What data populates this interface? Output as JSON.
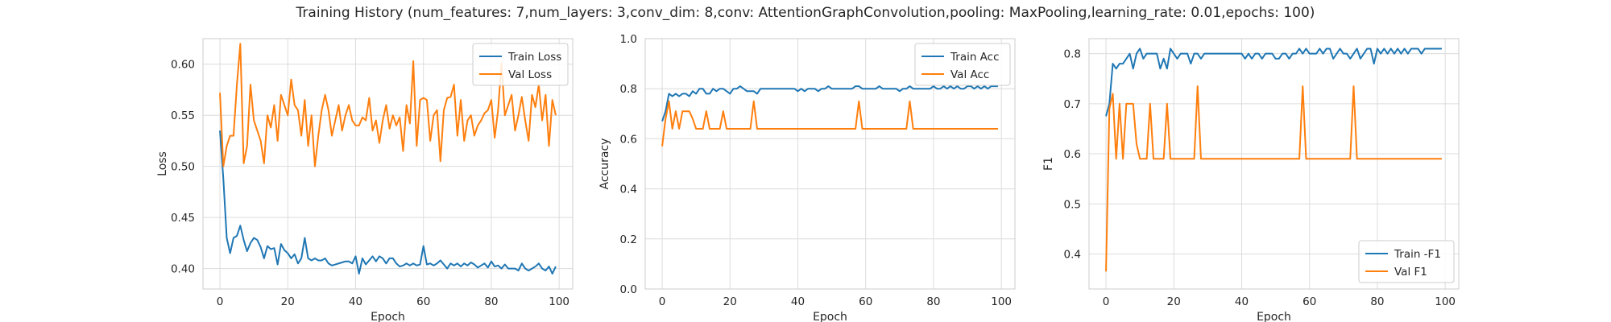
{
  "figure": {
    "suptitle": "Training History (num_features: 7,num_layers: 3,conv_dim: 8,conv: AttentionGraphConvolution,pooling: MaxPooling,learning_rate: 0.01,epochs: 100)"
  },
  "colors": {
    "series1": "#1f77b4",
    "series2": "#ff7f0e",
    "grid": "#dcdcdc",
    "frame": "#cccccc"
  },
  "chart_data": [
    {
      "type": "line",
      "xlabel": "Epoch",
      "ylabel": "Loss",
      "xlim": [
        -5,
        104
      ],
      "ylim": [
        0.38,
        0.625
      ],
      "xticks": [
        0,
        20,
        40,
        60,
        80,
        100
      ],
      "yticks": [
        0.4,
        0.45,
        0.5,
        0.55,
        0.6
      ],
      "ytick_labels": [
        "0.40",
        "0.45",
        "0.50",
        "0.55",
        "0.60"
      ],
      "grid": true,
      "legend": "top-right",
      "series": [
        {
          "name": "Train Loss",
          "values": [
            0.535,
            0.488,
            0.43,
            0.415,
            0.43,
            0.432,
            0.442,
            0.428,
            0.417,
            0.425,
            0.43,
            0.428,
            0.421,
            0.41,
            0.422,
            0.419,
            0.42,
            0.404,
            0.424,
            0.418,
            0.415,
            0.41,
            0.414,
            0.405,
            0.41,
            0.43,
            0.41,
            0.408,
            0.41,
            0.408,
            0.408,
            0.41,
            0.405,
            0.403,
            0.404,
            0.405,
            0.406,
            0.407,
            0.407,
            0.405,
            0.412,
            0.395,
            0.41,
            0.404,
            0.408,
            0.412,
            0.407,
            0.412,
            0.41,
            0.405,
            0.41,
            0.41,
            0.405,
            0.402,
            0.403,
            0.405,
            0.403,
            0.405,
            0.403,
            0.404,
            0.422,
            0.404,
            0.405,
            0.403,
            0.405,
            0.408,
            0.404,
            0.4,
            0.405,
            0.403,
            0.405,
            0.402,
            0.405,
            0.403,
            0.406,
            0.404,
            0.401,
            0.403,
            0.405,
            0.401,
            0.407,
            0.402,
            0.403,
            0.4,
            0.404,
            0.4,
            0.4,
            0.4,
            0.398,
            0.405,
            0.4,
            0.398,
            0.4,
            0.402,
            0.405,
            0.4,
            0.398,
            0.402,
            0.395,
            0.402
          ]
        },
        {
          "name": "Val Loss",
          "values": [
            0.572,
            0.5,
            0.52,
            0.53,
            0.53,
            0.58,
            0.62,
            0.503,
            0.52,
            0.58,
            0.545,
            0.535,
            0.525,
            0.503,
            0.55,
            0.538,
            0.56,
            0.525,
            0.57,
            0.56,
            0.55,
            0.585,
            0.56,
            0.555,
            0.53,
            0.565,
            0.52,
            0.55,
            0.5,
            0.53,
            0.555,
            0.57,
            0.555,
            0.53,
            0.545,
            0.56,
            0.535,
            0.55,
            0.56,
            0.545,
            0.54,
            0.54,
            0.548,
            0.545,
            0.567,
            0.535,
            0.545,
            0.523,
            0.545,
            0.56,
            0.537,
            0.55,
            0.54,
            0.548,
            0.515,
            0.56,
            0.542,
            0.603,
            0.52,
            0.565,
            0.567,
            0.565,
            0.525,
            0.55,
            0.555,
            0.505,
            0.555,
            0.567,
            0.568,
            0.58,
            0.53,
            0.565,
            0.525,
            0.545,
            0.55,
            0.53,
            0.54,
            0.545,
            0.552,
            0.555,
            0.565,
            0.528,
            0.555,
            0.601,
            0.55,
            0.56,
            0.57,
            0.535,
            0.55,
            0.568,
            0.545,
            0.525,
            0.57,
            0.558,
            0.58,
            0.545,
            0.57,
            0.52,
            0.565,
            0.55
          ]
        }
      ]
    },
    {
      "type": "line",
      "xlabel": "Epoch",
      "ylabel": "Accuracy",
      "xlim": [
        -5,
        104
      ],
      "ylim": [
        0.0,
        1.0
      ],
      "xticks": [
        0,
        20,
        40,
        60,
        80,
        100
      ],
      "yticks": [
        0.0,
        0.2,
        0.4,
        0.6,
        0.8,
        1.0
      ],
      "ytick_labels": [
        "0.0",
        "0.2",
        "0.4",
        "0.6",
        "0.8",
        "1.0"
      ],
      "grid": true,
      "legend": "top-right",
      "series": [
        {
          "name": "Train Acc",
          "values": [
            0.67,
            0.71,
            0.78,
            0.77,
            0.78,
            0.77,
            0.78,
            0.78,
            0.77,
            0.79,
            0.78,
            0.8,
            0.8,
            0.78,
            0.78,
            0.8,
            0.79,
            0.8,
            0.8,
            0.79,
            0.78,
            0.8,
            0.8,
            0.81,
            0.8,
            0.79,
            0.79,
            0.79,
            0.78,
            0.8,
            0.8,
            0.8,
            0.8,
            0.8,
            0.8,
            0.8,
            0.8,
            0.8,
            0.8,
            0.8,
            0.79,
            0.8,
            0.79,
            0.8,
            0.8,
            0.8,
            0.79,
            0.8,
            0.8,
            0.81,
            0.8,
            0.8,
            0.8,
            0.8,
            0.8,
            0.8,
            0.8,
            0.81,
            0.81,
            0.8,
            0.8,
            0.8,
            0.8,
            0.8,
            0.81,
            0.8,
            0.8,
            0.8,
            0.8,
            0.8,
            0.79,
            0.8,
            0.8,
            0.81,
            0.8,
            0.8,
            0.8,
            0.8,
            0.8,
            0.8,
            0.81,
            0.8,
            0.8,
            0.81,
            0.8,
            0.81,
            0.8,
            0.81,
            0.8,
            0.8,
            0.81,
            0.81,
            0.8,
            0.81,
            0.8,
            0.81,
            0.8,
            0.81,
            0.81,
            0.81
          ]
        },
        {
          "name": "Val Acc",
          "values": [
            0.57,
            0.68,
            0.75,
            0.64,
            0.71,
            0.64,
            0.71,
            0.71,
            0.71,
            0.68,
            0.64,
            0.64,
            0.64,
            0.71,
            0.64,
            0.64,
            0.64,
            0.64,
            0.71,
            0.64,
            0.64,
            0.64,
            0.64,
            0.64,
            0.64,
            0.64,
            0.64,
            0.75,
            0.64,
            0.64,
            0.64,
            0.64,
            0.64,
            0.64,
            0.64,
            0.64,
            0.64,
            0.64,
            0.64,
            0.64,
            0.64,
            0.64,
            0.64,
            0.64,
            0.64,
            0.64,
            0.64,
            0.64,
            0.64,
            0.64,
            0.64,
            0.64,
            0.64,
            0.64,
            0.64,
            0.64,
            0.64,
            0.64,
            0.75,
            0.64,
            0.64,
            0.64,
            0.64,
            0.64,
            0.64,
            0.64,
            0.64,
            0.64,
            0.64,
            0.64,
            0.64,
            0.64,
            0.64,
            0.75,
            0.64,
            0.64,
            0.64,
            0.64,
            0.64,
            0.64,
            0.64,
            0.64,
            0.64,
            0.64,
            0.64,
            0.64,
            0.64,
            0.64,
            0.64,
            0.64,
            0.64,
            0.64,
            0.64,
            0.64,
            0.64,
            0.64,
            0.64,
            0.64,
            0.64,
            0.64
          ]
        }
      ]
    },
    {
      "type": "line",
      "xlabel": "Epoch",
      "ylabel": "F1",
      "xlim": [
        -5,
        104
      ],
      "ylim": [
        0.33,
        0.83
      ],
      "xticks": [
        0,
        20,
        40,
        60,
        80,
        100
      ],
      "yticks": [
        0.4,
        0.5,
        0.6,
        0.7,
        0.8
      ],
      "ytick_labels": [
        "0.4",
        "0.5",
        "0.6",
        "0.7",
        "0.8"
      ],
      "grid": true,
      "legend": "bottom-right",
      "series": [
        {
          "name": "Train -F1",
          "values": [
            0.675,
            0.7,
            0.78,
            0.77,
            0.78,
            0.78,
            0.79,
            0.8,
            0.77,
            0.8,
            0.81,
            0.79,
            0.8,
            0.8,
            0.8,
            0.8,
            0.77,
            0.79,
            0.77,
            0.81,
            0.8,
            0.79,
            0.8,
            0.8,
            0.8,
            0.78,
            0.8,
            0.8,
            0.79,
            0.8,
            0.8,
            0.8,
            0.8,
            0.8,
            0.8,
            0.8,
            0.8,
            0.8,
            0.8,
            0.8,
            0.8,
            0.79,
            0.8,
            0.79,
            0.8,
            0.8,
            0.79,
            0.8,
            0.8,
            0.8,
            0.79,
            0.79,
            0.8,
            0.8,
            0.79,
            0.8,
            0.8,
            0.81,
            0.8,
            0.81,
            0.8,
            0.8,
            0.8,
            0.81,
            0.8,
            0.81,
            0.81,
            0.79,
            0.8,
            0.81,
            0.8,
            0.8,
            0.79,
            0.8,
            0.81,
            0.79,
            0.8,
            0.81,
            0.81,
            0.78,
            0.81,
            0.8,
            0.81,
            0.8,
            0.81,
            0.8,
            0.81,
            0.8,
            0.81,
            0.8,
            0.81,
            0.81,
            0.81,
            0.8,
            0.81,
            0.81,
            0.81,
            0.81,
            0.81,
            0.81
          ]
        },
        {
          "name": "Val F1",
          "values": [
            0.365,
            0.69,
            0.72,
            0.59,
            0.7,
            0.59,
            0.7,
            0.7,
            0.7,
            0.62,
            0.59,
            0.59,
            0.59,
            0.7,
            0.59,
            0.59,
            0.59,
            0.59,
            0.7,
            0.59,
            0.59,
            0.59,
            0.59,
            0.59,
            0.59,
            0.59,
            0.59,
            0.735,
            0.59,
            0.59,
            0.59,
            0.59,
            0.59,
            0.59,
            0.59,
            0.59,
            0.59,
            0.59,
            0.59,
            0.59,
            0.59,
            0.59,
            0.59,
            0.59,
            0.59,
            0.59,
            0.59,
            0.59,
            0.59,
            0.59,
            0.59,
            0.59,
            0.59,
            0.59,
            0.59,
            0.59,
            0.59,
            0.59,
            0.735,
            0.59,
            0.59,
            0.59,
            0.59,
            0.59,
            0.59,
            0.59,
            0.59,
            0.59,
            0.59,
            0.59,
            0.59,
            0.59,
            0.59,
            0.735,
            0.59,
            0.59,
            0.59,
            0.59,
            0.59,
            0.59,
            0.59,
            0.59,
            0.59,
            0.59,
            0.59,
            0.59,
            0.59,
            0.59,
            0.59,
            0.59,
            0.59,
            0.59,
            0.59,
            0.59,
            0.59,
            0.59,
            0.59,
            0.59,
            0.59,
            0.59
          ]
        }
      ]
    }
  ]
}
